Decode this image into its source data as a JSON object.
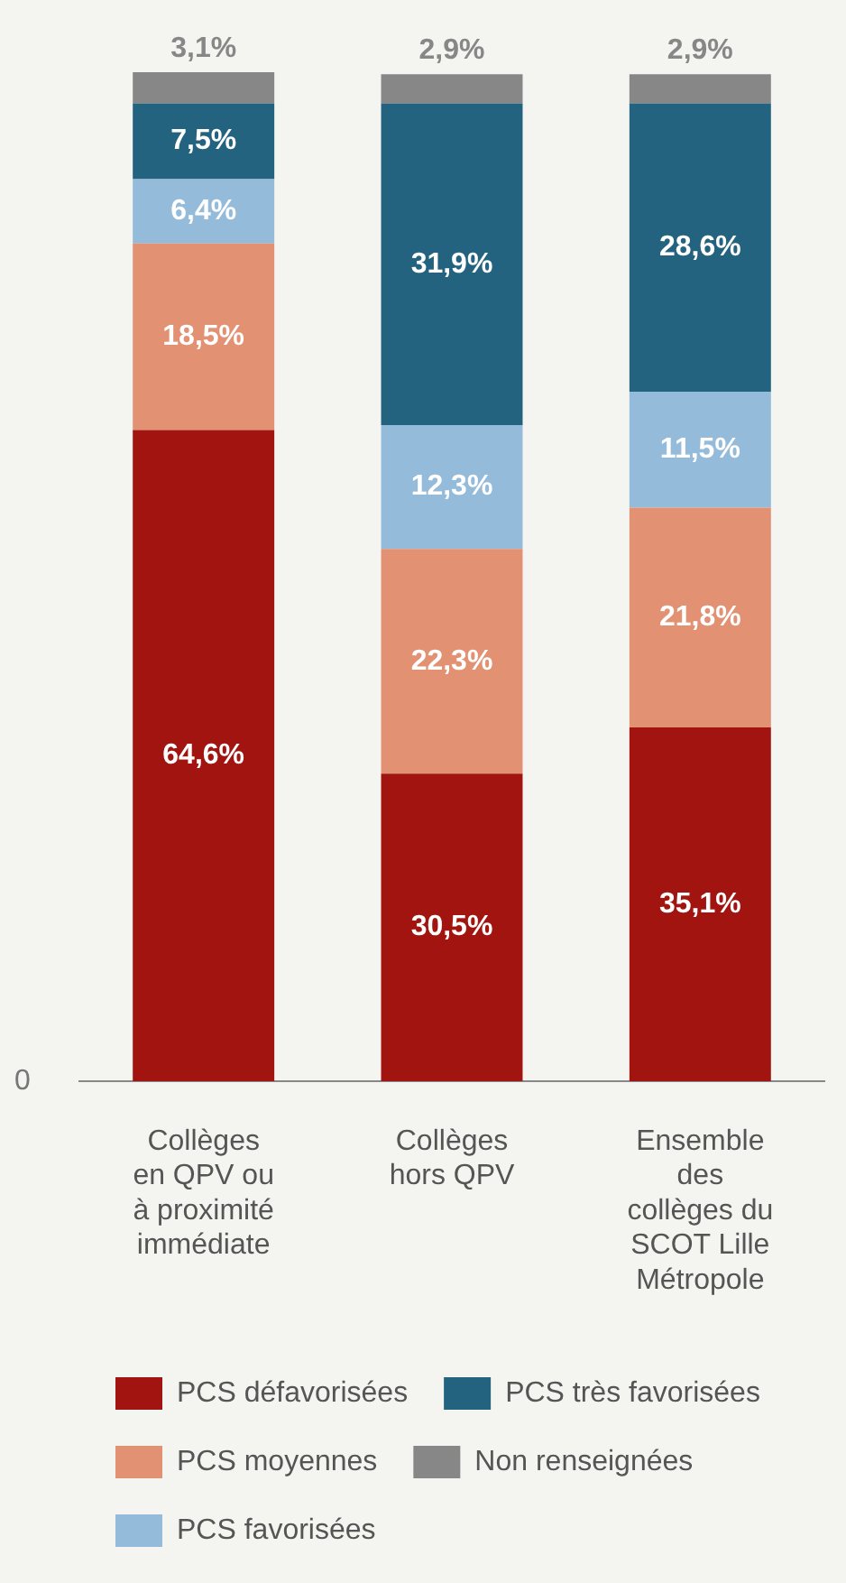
{
  "chart_data": {
    "type": "bar",
    "stacked": true,
    "categories": [
      "Collèges en QPV ou à proximité immédiate",
      "Collèges hors QPV",
      "Ensemble des collèges du SCOT Lille Métropole"
    ],
    "series": [
      {
        "name": "PCS défavorisées",
        "color": "#a11410",
        "values": [
          64.6,
          30.5,
          35.1
        ],
        "value_labels": [
          "64,6%",
          "30,5%",
          "35,1%"
        ]
      },
      {
        "name": "PCS moyennes",
        "color": "#e29173",
        "values": [
          18.5,
          22.3,
          21.8
        ],
        "value_labels": [
          "18,5%",
          "22,3%",
          "21,8%"
        ]
      },
      {
        "name": "PCS favorisées",
        "color": "#95bbda",
        "values": [
          6.4,
          12.3,
          11.5
        ],
        "value_labels": [
          "6,4%",
          "12,3%",
          "11,5%"
        ]
      },
      {
        "name": "PCS très favorisées",
        "color": "#23637f",
        "values": [
          7.5,
          31.9,
          28.6
        ],
        "value_labels": [
          "7,5%",
          "31,9%",
          "28,6%"
        ]
      },
      {
        "name": "Non renseignées",
        "color": "#878787",
        "values": [
          3.1,
          2.9,
          2.9
        ],
        "value_labels": [
          "3,1%",
          "2,9%",
          "2,9%"
        ]
      }
    ],
    "ylim": [
      0,
      100.1
    ],
    "annotations": [
      "0"
    ],
    "grid": false,
    "legend": "bottom"
  }
}
